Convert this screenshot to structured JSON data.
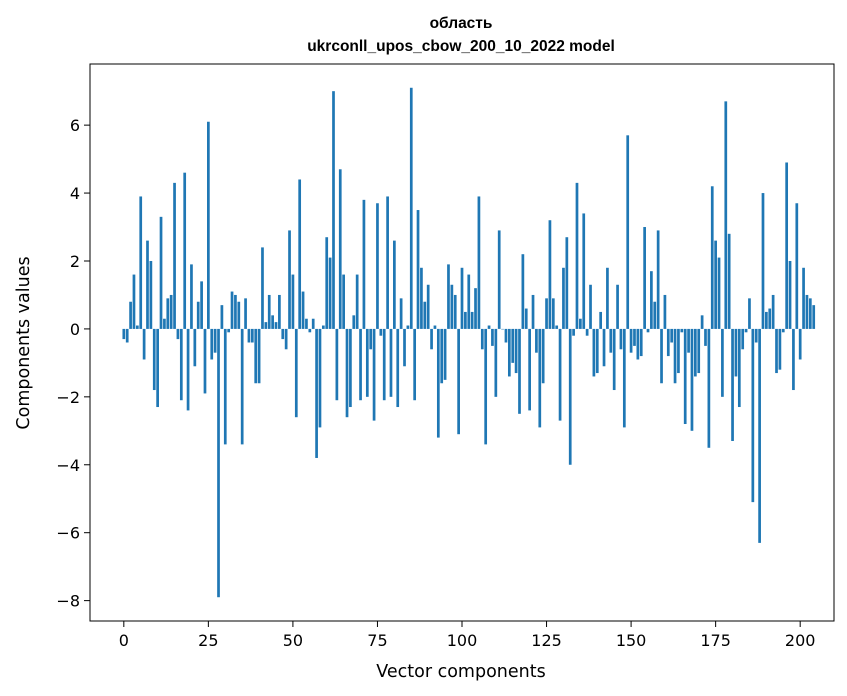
{
  "chart_data": {
    "type": "bar",
    "title_line1": "область",
    "title_line2": "ukrconll_upos_cbow_200_10_2022 model",
    "xlabel": "Vector components",
    "ylabel": "Components values",
    "xlim": [
      -10,
      210
    ],
    "ylim": [
      -8.6,
      7.8
    ],
    "xticks": [
      0,
      25,
      50,
      75,
      100,
      125,
      150,
      175,
      200
    ],
    "yticks": [
      -8,
      -6,
      -4,
      -2,
      0,
      2,
      4,
      6
    ],
    "bar_color": "#1f77b4",
    "values": [
      -0.3,
      -0.4,
      0.8,
      1.6,
      0.1,
      3.9,
      -0.9,
      2.6,
      2.0,
      -1.8,
      -2.3,
      3.3,
      0.3,
      0.9,
      1.0,
      4.3,
      -0.3,
      -2.1,
      4.6,
      -2.4,
      1.9,
      -1.1,
      0.8,
      1.4,
      -1.9,
      6.1,
      -0.9,
      -0.7,
      -7.9,
      0.7,
      -3.4,
      -0.1,
      1.1,
      1.0,
      0.8,
      -3.4,
      0.9,
      -0.4,
      -0.4,
      -1.6,
      -1.6,
      2.4,
      0.2,
      1.0,
      0.4,
      0.2,
      1.0,
      -0.3,
      -0.6,
      2.9,
      1.6,
      -2.6,
      4.4,
      1.1,
      0.3,
      -0.1,
      0.3,
      -3.8,
      -2.9,
      0.1,
      2.7,
      2.1,
      7.0,
      -2.1,
      4.7,
      1.6,
      -2.6,
      -2.3,
      0.4,
      1.6,
      -2.1,
      3.8,
      -2.0,
      -0.6,
      -2.7,
      3.7,
      -0.2,
      -2.1,
      3.9,
      -2.0,
      2.6,
      -2.3,
      0.9,
      -1.1,
      0.1,
      7.1,
      -2.1,
      3.5,
      1.8,
      0.8,
      1.3,
      -0.6,
      0.1,
      -3.2,
      -1.6,
      -1.5,
      1.9,
      1.3,
      1.0,
      -3.1,
      1.8,
      0.5,
      1.6,
      0.5,
      1.2,
      3.9,
      -0.6,
      -3.4,
      0.1,
      -0.5,
      -2.0,
      2.9,
      0.0,
      -0.4,
      -1.4,
      -1.0,
      -1.3,
      -2.5,
      2.2,
      0.6,
      -2.4,
      1.0,
      -0.7,
      -2.9,
      -1.6,
      0.9,
      3.2,
      0.9,
      0.1,
      -2.7,
      1.8,
      2.7,
      -4.0,
      -0.2,
      4.3,
      0.3,
      3.4,
      -0.2,
      1.3,
      -1.4,
      -1.3,
      0.5,
      -1.1,
      1.8,
      -0.7,
      -1.8,
      1.3,
      -0.6,
      -2.9,
      5.7,
      -0.7,
      -0.5,
      -0.9,
      -0.8,
      3.0,
      -0.1,
      1.7,
      0.8,
      2.9,
      -1.6,
      1.0,
      -0.8,
      -0.4,
      -1.6,
      -1.3,
      -0.1,
      -2.8,
      -0.7,
      -3.0,
      -1.4,
      -1.3,
      0.4,
      -0.5,
      -3.5,
      4.2,
      2.6,
      2.1,
      -2.0,
      6.7,
      2.8,
      -3.3,
      -1.4,
      -2.3,
      -0.6,
      -0.1,
      0.9,
      -5.1,
      -0.4,
      -6.3,
      4.0,
      0.5,
      0.6,
      1.0,
      -1.3,
      -1.2,
      -0.1,
      4.9,
      2.0,
      -1.8,
      3.7,
      -0.9,
      1.8,
      1.0,
      0.9,
      0.7
    ]
  }
}
